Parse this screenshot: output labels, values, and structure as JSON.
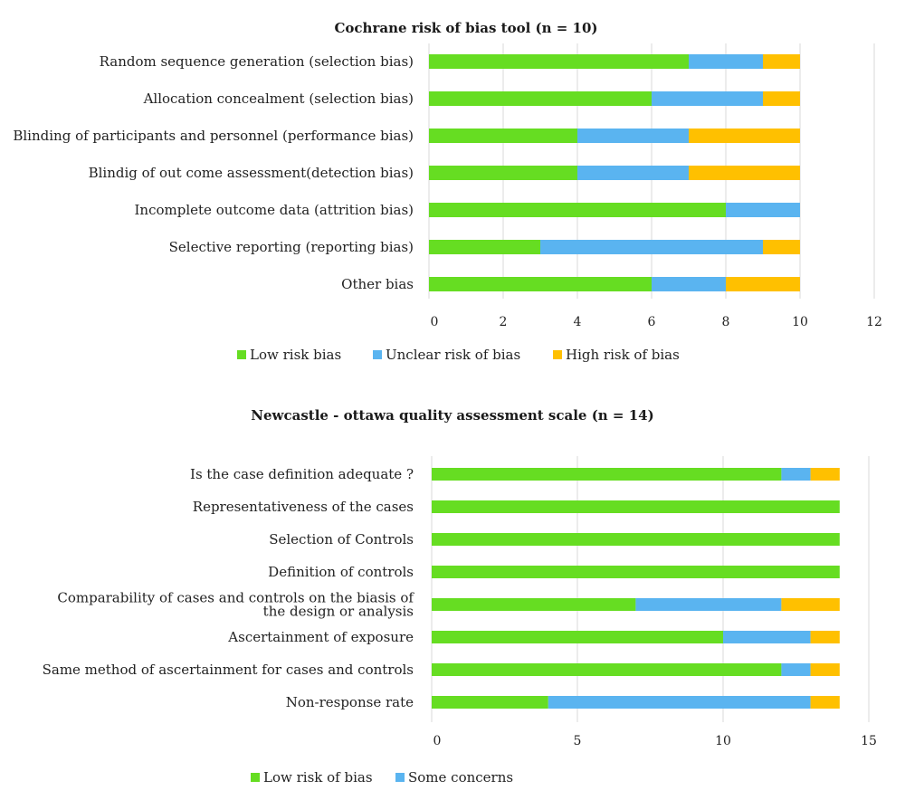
{
  "chart_data": [
    {
      "type": "bar",
      "orientation": "horizontal",
      "stacked": true,
      "title": "Cochrane risk of bias tool (n = 10)",
      "categories": [
        "Random sequence generation (selection bias)",
        "Allocation concealment (selection bias)",
        "Blinding of participants and personnel (performance bias)",
        "Blindig of out come assessment(detection bias)",
        "Incomplete outcome data (attrition bias)",
        "Selective reporting (reporting bias)",
        "Other bias"
      ],
      "series": [
        {
          "name": "Low risk bias",
          "color": "#66dd22",
          "values": [
            7,
            6,
            4,
            4,
            8,
            3,
            6
          ]
        },
        {
          "name": "Unclear risk of bias",
          "color": "#5ab4f0",
          "values": [
            2,
            3,
            3,
            3,
            2,
            6,
            2
          ]
        },
        {
          "name": "High risk of bias",
          "color": "#ffc000",
          "values": [
            1,
            1,
            3,
            3,
            0,
            1,
            2
          ]
        }
      ],
      "xlim": [
        0,
        12
      ],
      "xticks": [
        "0",
        "2",
        "4",
        "6",
        "8",
        "10",
        "12"
      ],
      "grid": true,
      "legend": "bottom"
    },
    {
      "type": "bar",
      "orientation": "horizontal",
      "stacked": true,
      "title": "Newcastle - ottawa quality assessment scale (n = 14)",
      "categories": [
        "Is the case definition adequate ?",
        "Representativeness of the cases",
        "Selection of Controls",
        "Definition of controls",
        "Comparability of cases and controls on the biasis of the design or analysis",
        "Ascertainment of exposure",
        "Same method of ascertainment for cases and controls",
        "Non-response rate"
      ],
      "category_lines": [
        [
          "Is the case definition adequate ?"
        ],
        [
          "Representativeness of the cases"
        ],
        [
          "Selection of Controls"
        ],
        [
          "Definition of controls"
        ],
        [
          "Comparability of cases and controls on the biasis of",
          "the design or analysis"
        ],
        [
          "Ascertainment of exposure"
        ],
        [
          "Same method of ascertainment for cases and controls"
        ],
        [
          "Non-response rate"
        ]
      ],
      "series": [
        {
          "name": "Low risk of bias",
          "color": "#66dd22",
          "values": [
            12,
            14,
            14,
            14,
            7,
            10,
            12,
            4
          ]
        },
        {
          "name": "Some concerns",
          "color": "#5ab4f0",
          "values": [
            1,
            0,
            0,
            0,
            5,
            3,
            1,
            9
          ]
        },
        {
          "color": "#ffc000",
          "values": [
            1,
            0,
            0,
            0,
            2,
            1,
            1,
            1
          ]
        }
      ],
      "xlim": [
        0,
        15
      ],
      "xticks": [
        "0",
        "5",
        "10",
        "15"
      ],
      "grid": true,
      "legend": "bottom"
    }
  ]
}
